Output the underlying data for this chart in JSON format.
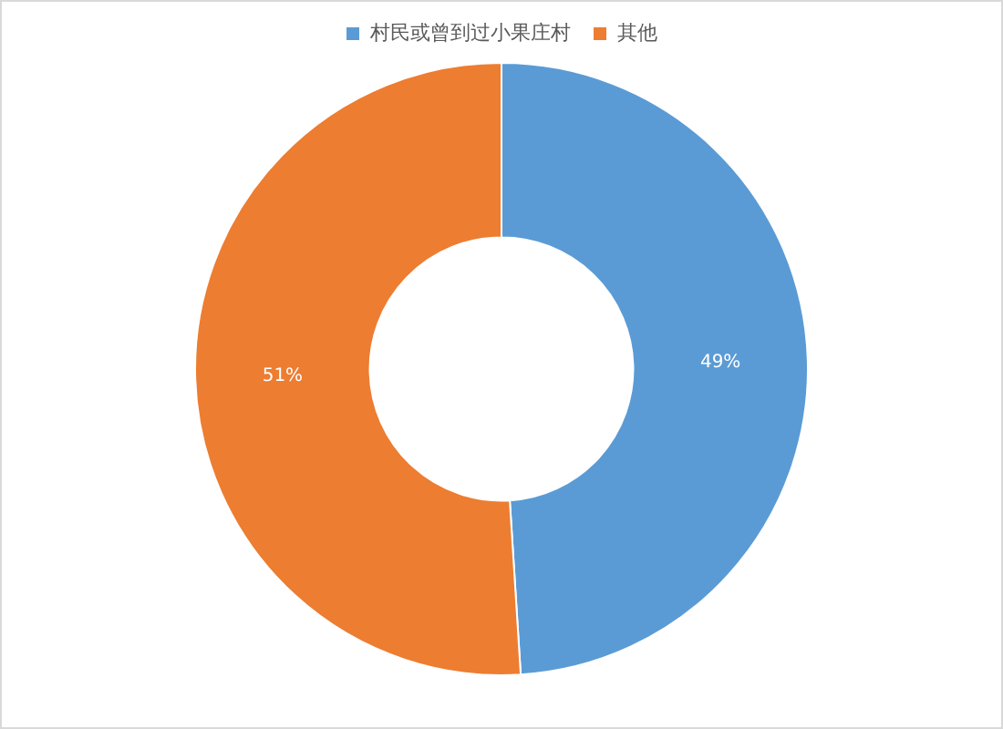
{
  "chart_data": {
    "type": "donut",
    "categories": [
      "村民或曾到过小果庄村",
      "其他"
    ],
    "values": [
      49,
      51
    ],
    "colors": [
      "#5b9bd5",
      "#ed7d31"
    ],
    "value_labels": [
      "49%",
      "51%"
    ],
    "legend": "top"
  }
}
